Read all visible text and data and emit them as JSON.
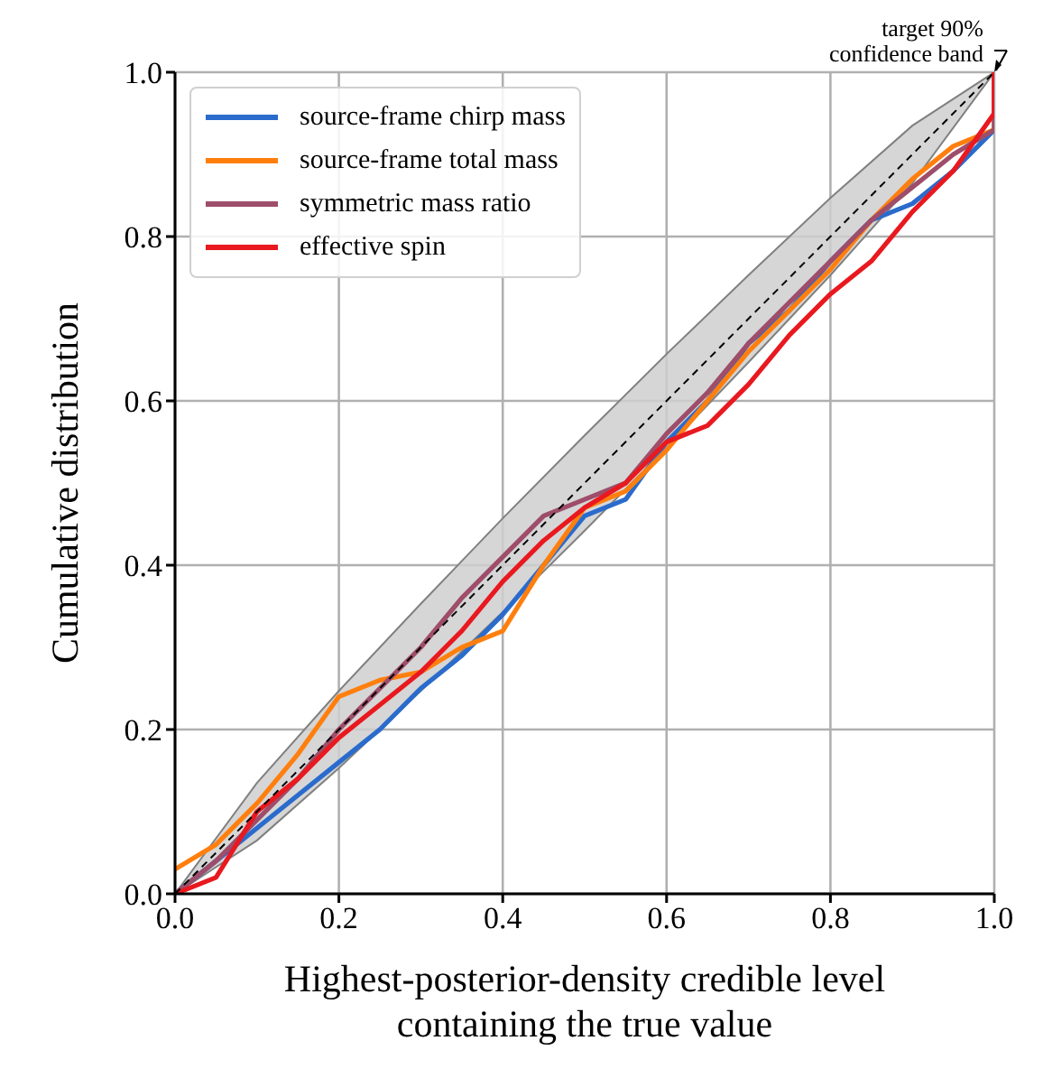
{
  "chart_data": {
    "type": "line",
    "xlabel": "Highest-posterior-density credible level\ncontaining the true value",
    "ylabel": "Cumulative distribution",
    "x": [
      0,
      0.05,
      0.1,
      0.15,
      0.2,
      0.25,
      0.3,
      0.35,
      0.4,
      0.45,
      0.5,
      0.55,
      0.6,
      0.65,
      0.7,
      0.75,
      0.8,
      0.85,
      0.9,
      0.95,
      1,
      1
    ],
    "series": [
      {
        "name": "source-frame chirp mass",
        "color": "#2a6bcc",
        "values": [
          0,
          0.04,
          0.08,
          0.12,
          0.16,
          0.2,
          0.25,
          0.29,
          0.34,
          0.4,
          0.46,
          0.48,
          0.55,
          0.6,
          0.67,
          0.71,
          0.77,
          0.82,
          0.84,
          0.88,
          0.93,
          1
        ]
      },
      {
        "name": "source-frame total mass",
        "color": "#ff7f0e",
        "values": [
          0.03,
          0.06,
          0.11,
          0.17,
          0.24,
          0.26,
          0.27,
          0.3,
          0.32,
          0.4,
          0.47,
          0.49,
          0.54,
          0.6,
          0.66,
          0.71,
          0.76,
          0.82,
          0.87,
          0.91,
          0.93,
          1
        ]
      },
      {
        "name": "symmetric mass ratio",
        "color": "#9e4d6a",
        "values": [
          0,
          0.04,
          0.09,
          0.14,
          0.2,
          0.25,
          0.3,
          0.36,
          0.41,
          0.46,
          0.48,
          0.5,
          0.56,
          0.61,
          0.67,
          0.72,
          0.77,
          0.82,
          0.86,
          0.9,
          0.93,
          1
        ]
      },
      {
        "name": "effective spin",
        "color": "#e8191f",
        "values": [
          0,
          0.02,
          0.1,
          0.14,
          0.19,
          0.23,
          0.27,
          0.32,
          0.38,
          0.43,
          0.47,
          0.5,
          0.55,
          0.57,
          0.62,
          0.68,
          0.73,
          0.77,
          0.83,
          0.88,
          0.95,
          1
        ]
      },
      {
        "color": "#000000",
        "line_style": "dashed",
        "x": [
          0,
          0.1,
          0.2,
          0.3,
          0.4,
          0.5,
          0.6,
          0.7,
          0.8,
          0.9,
          1
        ],
        "values": [
          0,
          0.1,
          0.2,
          0.3,
          0.4,
          0.5,
          0.6,
          0.7,
          0.8,
          0.9,
          1
        ],
        "lower": [
          0,
          0.065,
          0.153,
          0.247,
          0.343,
          0.442,
          0.543,
          0.647,
          0.753,
          0.865,
          1
        ],
        "upper": [
          0,
          0.135,
          0.247,
          0.353,
          0.457,
          0.558,
          0.657,
          0.753,
          0.847,
          0.935,
          1
        ]
      }
    ],
    "xlim": [
      0,
      1
    ],
    "ylim": [
      0,
      1
    ],
    "xticks": [
      {
        "value": 0,
        "label": "0.0"
      },
      0.2,
      0.4,
      0.6,
      0.8,
      {
        "value": 1,
        "label": "1.0"
      }
    ],
    "yticks": [
      {
        "value": 0,
        "label": "0.0"
      },
      0.2,
      0.4,
      0.6,
      0.8,
      {
        "value": 1,
        "label": "1.0"
      }
    ],
    "grid": true,
    "legend": "top left",
    "annotations": [
      {
        "text": "target 90%\nconfidence band",
        "x": 1,
        "y": 1
      }
    ]
  }
}
